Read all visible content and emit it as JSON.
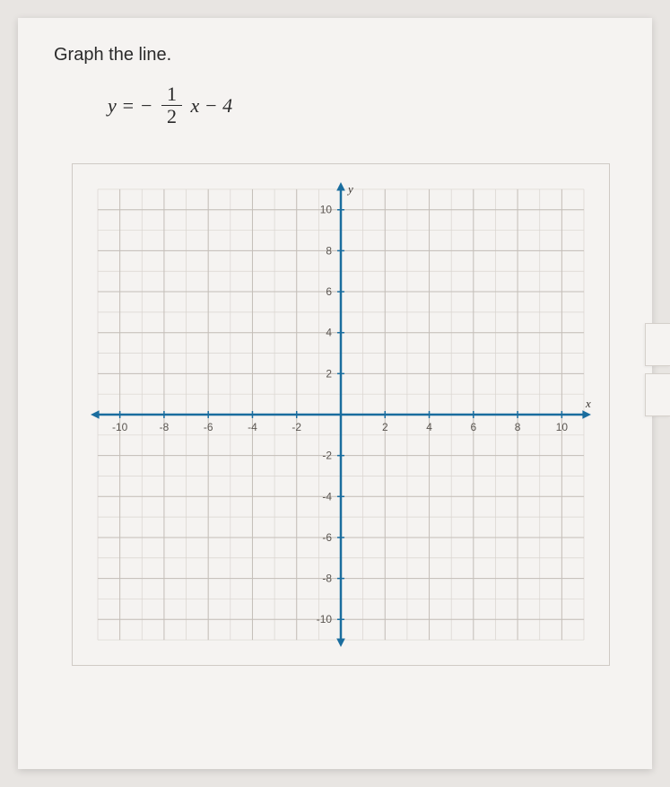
{
  "instruction_text": "Graph the line.",
  "equation": {
    "lhs": "y",
    "eq": "=",
    "neg": "−",
    "num": "1",
    "den": "2",
    "var": "x",
    "op": "−",
    "const": "4"
  },
  "chart": {
    "type": "line-graph-grid",
    "background_color": "#f5f3f1",
    "grid_color_minor": "#d9d4cf",
    "grid_color_major": "#c4beb8",
    "axis_color": "#1a6d9e",
    "axis_width": 2.5,
    "tick_color": "#5a5550",
    "tick_label_color": "#5a5550",
    "tick_label_fontsize": 12,
    "axis_label_color": "#3a3530",
    "axis_label_fontsize": 13,
    "xlim": [
      -11,
      11
    ],
    "ylim": [
      -11,
      11
    ],
    "xtick_step": 2,
    "ytick_step": 2,
    "xticks": [
      -10,
      -8,
      -6,
      -4,
      -2,
      2,
      4,
      6,
      8,
      10
    ],
    "yticks": [
      -10,
      -8,
      -6,
      -4,
      -2,
      2,
      4,
      6,
      8,
      10
    ],
    "x_axis_label": "x",
    "y_axis_label": "y",
    "minor_grid_step": 1,
    "major_grid_step": 2,
    "arrow_size": 8
  }
}
